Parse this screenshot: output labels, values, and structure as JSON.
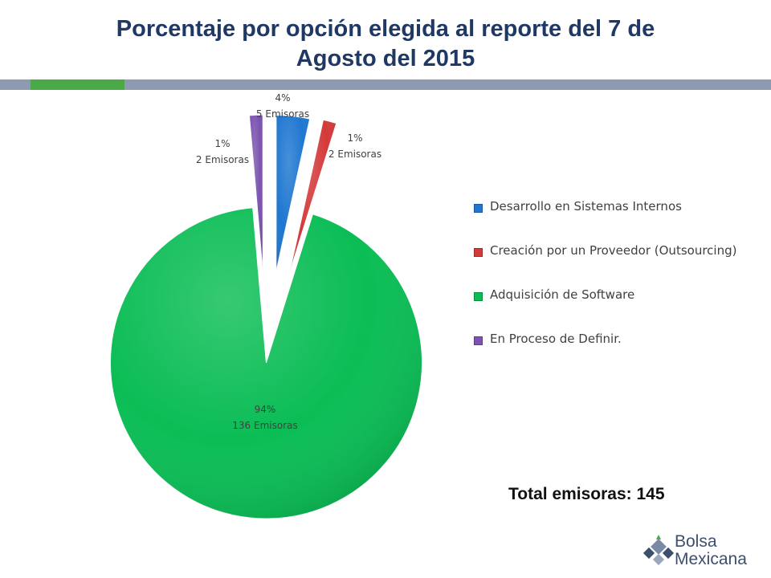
{
  "header": {
    "title_line1": "Porcentaje por opción elegida al reporte del 7 de",
    "title_line2": "Agosto del 2015"
  },
  "chart_data": {
    "type": "pie",
    "title": "Porcentaje por opción elegida al reporte del 7 de Agosto del 2015",
    "legend_position": "right",
    "slices": [
      {
        "name": "Desarrollo en Sistemas Internos",
        "value": 5,
        "percent_label": "4%",
        "count_label": "5 Emisoras",
        "color": "#1f77d0"
      },
      {
        "name": "Creación por un Proveedor (Outsourcing)",
        "value": 2,
        "percent_label": "1%",
        "count_label": "2 Emisoras",
        "color": "#d43a3a"
      },
      {
        "name": "Adquisición de Software",
        "value": 136,
        "percent_label": "94%",
        "count_label": "136 Emisoras",
        "color": "#0bbd55"
      },
      {
        "name": "En Proceso de Definir.",
        "value": 2,
        "percent_label": "1%",
        "count_label": "2 Emisoras",
        "color": "#7c53b0"
      }
    ]
  },
  "footer": {
    "total_label": "Total emisoras: 145"
  },
  "logo": {
    "line1": "Bolsa",
    "line2": "Mexicana"
  }
}
